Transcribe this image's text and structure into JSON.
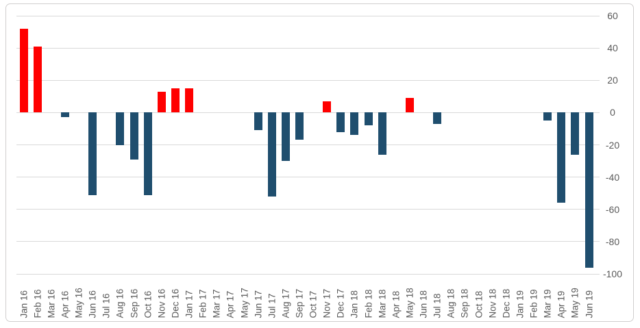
{
  "chart_data": {
    "type": "bar",
    "title": "",
    "xlabel": "",
    "ylabel": "",
    "categories": [
      "Jan 16",
      "Feb 16",
      "Mar 16",
      "Apr 16",
      "May 16",
      "Jun 16",
      "Jul 16",
      "Aug 16",
      "Sep 16",
      "Oct 16",
      "Nov 16",
      "Dec 16",
      "Jan 17",
      "Feb 17",
      "Mar 17",
      "Apr 17",
      "May 17",
      "Jun 17",
      "Jul 17",
      "Aug 17",
      "Sep 17",
      "Oct 17",
      "Nov 17",
      "Dec 17",
      "Jan 18",
      "Feb 18",
      "Mar 18",
      "Apr 18",
      "May 18",
      "Jun 18",
      "Jul 18",
      "Aug 18",
      "Sep 18",
      "Oct 18",
      "Nov 18",
      "Dec 18",
      "Jan 19",
      "Feb 19",
      "Mar 19",
      "Apr 19",
      "May 19",
      "Jun 19"
    ],
    "values": [
      52,
      41,
      0,
      -3,
      0,
      -51,
      0,
      -20,
      -29,
      -51,
      13,
      15,
      15,
      0,
      0,
      0,
      0,
      -11,
      -52,
      -30,
      -17,
      0,
      7,
      -12,
      -14,
      -8,
      -26,
      0,
      9,
      0,
      -7,
      0,
      0,
      0,
      0,
      0,
      0,
      0,
      -5,
      -56,
      -26,
      -96
    ],
    "bar_color_positive": "#ff0000",
    "bar_color_negative": "#1f4e6e",
    "ylim": [
      -100,
      60
    ],
    "yticks": [
      60,
      40,
      20,
      0,
      -20,
      -40,
      -60,
      -80,
      -100
    ],
    "grid": true,
    "y_axis_side": "right",
    "x_labels_rotated": true,
    "legend": null
  },
  "colors": {
    "gridline": "#d9d9d9",
    "frame_border": "#d0cece",
    "tick_label": "#595959",
    "background": "#ffffff"
  }
}
